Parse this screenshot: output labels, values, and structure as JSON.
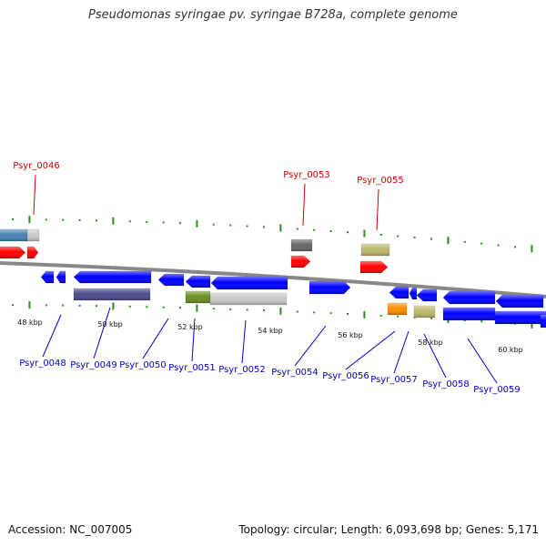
{
  "title": "Pseudomonas syringae pv. syringae B728a, complete genome",
  "footer": {
    "accession": "Accession: NC_007005",
    "summary": "Topology: circular; Length: 6,093,698 bp; Genes: 5,171"
  },
  "colors": {
    "top_label": "#cc0000",
    "bottom_label": "#0000cc",
    "tick": "#2e8b22",
    "backbone": "#888888",
    "red": "#ff0000",
    "blue": "#0000ff",
    "steel_blue": "#4682b4",
    "slate": "#4b4a8c",
    "olive": "#6b8e23",
    "light_gray": "#c8c8c8",
    "dark_gray": "#666666",
    "khaki": "#bdb76b",
    "orange": "#ff8c00"
  },
  "scale_labels": [
    "48 kbp",
    "50 kbp",
    "52 kbp",
    "54 kbp",
    "56 kbp",
    "58 kbp",
    "60 kbp"
  ],
  "top_genes": [
    "Psyr_0046",
    "Psyr_0053",
    "Psyr_0055"
  ],
  "bottom_genes": [
    "Psyr_0048",
    "Psyr_0049",
    "Psyr_0050",
    "Psyr_0051",
    "Psyr_0052",
    "Psyr_0054",
    "Psyr_0056",
    "Psyr_0057",
    "Psyr_0058",
    "Psyr_0059"
  ]
}
